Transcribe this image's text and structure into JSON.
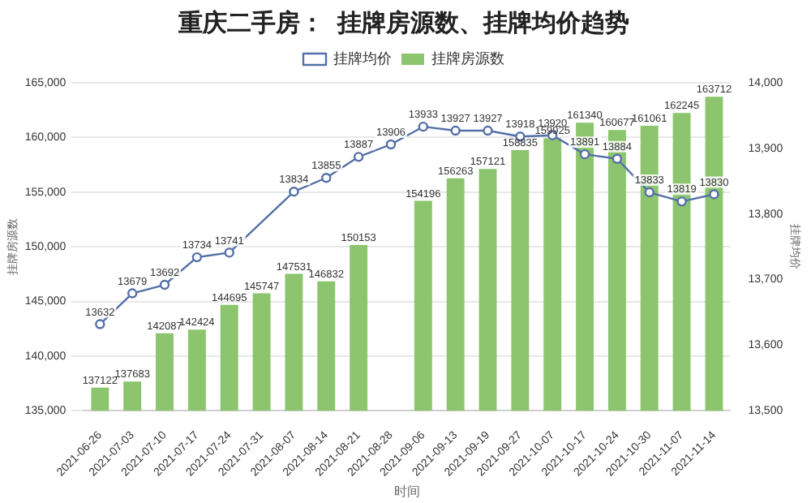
{
  "chart_data": {
    "type": "bar",
    "title": "重庆二手房：  挂牌房源数、挂牌均价趋势",
    "xlabel": "时间",
    "ylabel": "挂牌房源数",
    "y2label": "挂牌均价",
    "categories": [
      "2021-06-26",
      "2021-07-03",
      "2021-07-10",
      "2021-07-17",
      "2021-07-24",
      "2021-07-31",
      "2021-08-07",
      "2021-08-14",
      "2021-08-21",
      "2021-08-28",
      "2021-09-06",
      "2021-09-13",
      "2021-09-19",
      "2021-09-27",
      "2021-10-07",
      "2021-10-17",
      "2021-10-24",
      "2021-10-30",
      "2021-11-07",
      "2021-11-14"
    ],
    "series": [
      {
        "name": "挂牌房源数",
        "color": "#8cc56e",
        "values": [
          137122,
          137683,
          142087,
          142424,
          144695,
          145747,
          147531,
          146832,
          150153,
          null,
          154196,
          156263,
          157121,
          158835,
          159925,
          161340,
          160677,
          161061,
          162245,
          163712
        ]
      },
      {
        "name": "挂牌均价",
        "type": "line",
        "axis": "y2",
        "color": "#5470a8",
        "values": [
          13632,
          13679,
          13692,
          13734,
          13741,
          null,
          13834,
          13855,
          13887,
          13906,
          13933,
          13927,
          13927,
          13918,
          13920,
          13891,
          13884,
          13833,
          13819,
          13830
        ]
      }
    ],
    "ylim": [
      135000,
      165000
    ],
    "yticks": [
      {
        "value": 135000,
        "label": "135,000"
      },
      {
        "value": 140000,
        "label": "140,000"
      },
      {
        "value": 145000,
        "label": "145,000"
      },
      {
        "value": 150000,
        "label": "150,000"
      },
      {
        "value": 155000,
        "label": "155,000"
      },
      {
        "value": 160000,
        "label": "160,000"
      },
      {
        "value": 165000,
        "label": "165,000"
      }
    ],
    "y2lim": [
      13500,
      14000
    ],
    "y2ticks": [
      {
        "value": 13500,
        "label": "13,500"
      },
      {
        "value": 13600,
        "label": "13,600"
      },
      {
        "value": 13700,
        "label": "13,700"
      },
      {
        "value": 13800,
        "label": "13,800"
      },
      {
        "value": 13900,
        "label": "13,900"
      },
      {
        "value": 14000,
        "label": "14,000"
      }
    ],
    "grid": "y",
    "legend": "top",
    "marker": "circle",
    "line_style": "solid",
    "data_labels": true
  }
}
